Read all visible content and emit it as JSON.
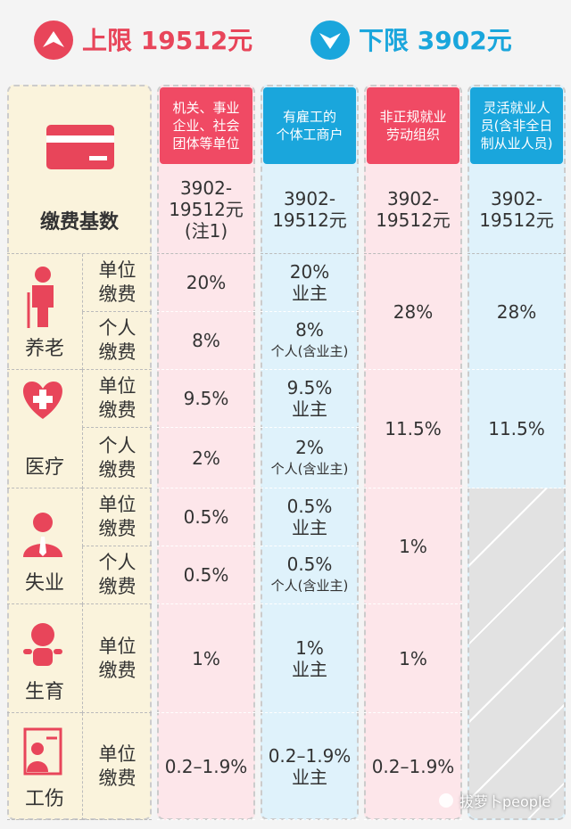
{
  "limits": {
    "upper": {
      "label": "上限",
      "amount": "19512元"
    },
    "lower": {
      "label": "下限",
      "amount": "3902元"
    }
  },
  "table": {
    "columns": [
      [
        "机关、事业",
        "企业、社会",
        "团体等单位"
      ],
      [
        "有雇工的",
        "个体工商户"
      ],
      [
        "非正规就业",
        "劳动组织"
      ],
      [
        "灵活就业人",
        "员(含非全日",
        "制从业人员)"
      ]
    ],
    "base": {
      "label": "缴费基数",
      "values": [
        [
          "3902-",
          "19512元",
          "(注1)"
        ],
        [
          "3902-",
          "19512元"
        ],
        [
          "3902-",
          "19512元"
        ],
        [
          "3902-",
          "19512元"
        ]
      ]
    },
    "insurances": [
      {
        "name": "养老",
        "items": [
          [
            "单位",
            "缴费"
          ],
          [
            "个人",
            "缴费"
          ]
        ]
      },
      {
        "name": "医疗",
        "items": [
          [
            "单位",
            "缴费"
          ],
          [
            "个人",
            "缴费"
          ]
        ]
      },
      {
        "name": "失业",
        "items": [
          [
            "单位",
            "缴费"
          ],
          [
            "个人",
            "缴费"
          ]
        ]
      },
      {
        "name": "生育",
        "items": [
          [
            "单位",
            "缴费"
          ]
        ]
      },
      {
        "name": "工伤",
        "items": [
          [
            "单位",
            "缴费"
          ]
        ]
      }
    ],
    "cells": [
      [
        [
          "20%"
        ],
        [
          "8%"
        ],
        [
          "9.5%"
        ],
        [
          "2%"
        ],
        [
          "0.5%"
        ],
        [
          "0.5%"
        ],
        [
          "1%"
        ],
        [
          "0.2–1.9%"
        ]
      ],
      [
        [
          "20%",
          "业主"
        ],
        [
          "8%",
          "个人(含业主)"
        ],
        [
          "9.5%",
          "业主"
        ],
        [
          "2%",
          "个人(含业主)"
        ],
        [
          "0.5%",
          "业主"
        ],
        [
          "0.5%",
          "个人(含业主)"
        ],
        [
          "1%",
          "业主"
        ],
        [
          "0.2–1.9%",
          "业主"
        ]
      ],
      [
        [
          "28%"
        ],
        [
          "11.5%"
        ],
        [
          "1%"
        ],
        [
          "1%"
        ],
        [
          "0.2–1.9%"
        ]
      ],
      [
        [
          "28%"
        ],
        [
          "11.5%"
        ]
      ]
    ]
  },
  "watermark": "拔萝卜people"
}
